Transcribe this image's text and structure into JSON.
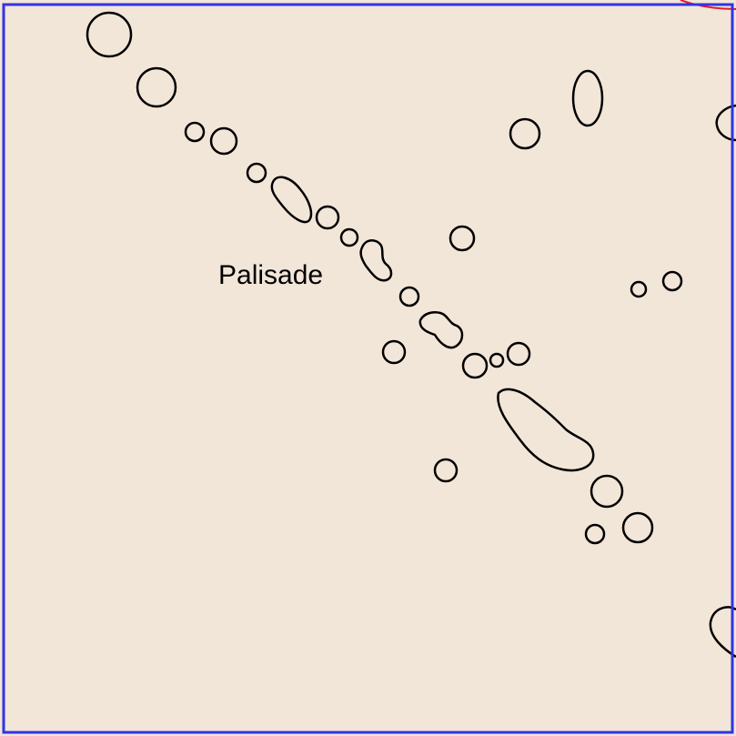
{
  "map": {
    "background_color": "#F2E6D8",
    "frame_color": "#3333E6",
    "feature_stroke_color": "#000000",
    "boundary_color": "#E6192E",
    "label": "Palisade"
  }
}
